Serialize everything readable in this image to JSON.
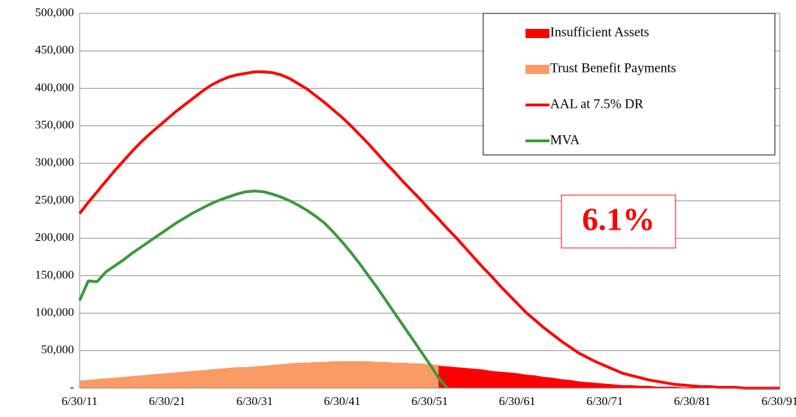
{
  "chart_data": {
    "type": "line",
    "annotation": "6.1%",
    "legend": "upper right",
    "grid": true,
    "ylim": [
      0,
      500000
    ],
    "yticks": [
      {
        "value": 0,
        "label": "-"
      },
      {
        "value": 50000,
        "label": "50,000"
      },
      {
        "value": 100000,
        "label": "100,000"
      },
      {
        "value": 150000,
        "label": "150,000"
      },
      {
        "value": 200000,
        "label": "200,000"
      },
      {
        "value": 250000,
        "label": "250,000"
      },
      {
        "value": 300000,
        "label": "300,000"
      },
      {
        "value": 350000,
        "label": "350,000"
      },
      {
        "value": 400000,
        "label": "400,000"
      },
      {
        "value": 450000,
        "label": "450,000"
      },
      {
        "value": 500000,
        "label": "500,000"
      }
    ],
    "categories": [
      "6/30/11",
      null,
      null,
      null,
      null,
      null,
      null,
      null,
      null,
      null,
      "6/30/21",
      null,
      null,
      null,
      null,
      null,
      null,
      null,
      null,
      null,
      "6/30/31",
      null,
      null,
      null,
      null,
      null,
      null,
      null,
      null,
      null,
      "6/30/41",
      null,
      null,
      null,
      null,
      null,
      null,
      null,
      null,
      null,
      "6/30/51",
      null,
      null,
      null,
      null,
      null,
      null,
      null,
      null,
      null,
      "6/30/61",
      null,
      null,
      null,
      null,
      null,
      null,
      null,
      null,
      null,
      "6/30/71",
      null,
      null,
      null,
      null,
      null,
      null,
      null,
      null,
      null,
      "6/30/81",
      null,
      null,
      null,
      null,
      null,
      null,
      null,
      null,
      null,
      "6/30/91"
    ],
    "series": [
      {
        "name": "Insufficient Assets",
        "type": "area",
        "color": "#ff0000",
        "values": [
          null,
          null,
          null,
          null,
          null,
          null,
          null,
          null,
          null,
          null,
          null,
          null,
          null,
          null,
          null,
          null,
          null,
          null,
          null,
          null,
          null,
          null,
          null,
          null,
          null,
          null,
          null,
          null,
          null,
          null,
          null,
          null,
          null,
          null,
          null,
          null,
          null,
          null,
          null,
          null,
          null,
          30000,
          29000,
          28000,
          27000,
          26000,
          25000,
          23000,
          22000,
          21000,
          20000,
          18000,
          17000,
          15000,
          14000,
          12000,
          11000,
          9000,
          8000,
          7000,
          6000,
          5000,
          4000,
          4000,
          3000,
          3000,
          2000,
          2000,
          2000,
          1000,
          1000,
          1000,
          1000,
          1000,
          0,
          0,
          0,
          0,
          0,
          0,
          0
        ]
      },
      {
        "name": "Trust Benefit Payments",
        "type": "area",
        "color": "#fa9a64",
        "values": [
          10000,
          11000,
          12000,
          13000,
          14000,
          15000,
          16000,
          17000,
          18000,
          19000,
          20000,
          21000,
          22000,
          23000,
          24000,
          25000,
          26000,
          27000,
          28000,
          28000,
          29000,
          30000,
          31000,
          32000,
          33000,
          34000,
          34000,
          35000,
          35000,
          36000,
          36000,
          36000,
          36000,
          36000,
          35000,
          35000,
          34000,
          34000,
          33000,
          33000,
          32000,
          31000,
          null,
          null,
          null,
          null,
          null,
          null,
          null,
          null,
          null,
          null,
          null,
          null,
          null,
          null,
          null,
          null,
          null,
          null,
          null,
          null,
          null,
          null,
          null,
          null,
          null,
          null,
          null,
          null,
          null,
          null,
          null,
          null,
          null,
          null,
          null,
          null,
          null,
          null,
          null
        ]
      },
      {
        "name": "AAL at 7.5% DR",
        "type": "line",
        "color": "#ff0000",
        "values": [
          233000,
          248000,
          262000,
          276000,
          290000,
          303000,
          316000,
          328000,
          339000,
          349000,
          359000,
          369000,
          378000,
          387000,
          396000,
          404000,
          410000,
          415000,
          418000,
          420000,
          422000,
          422000,
          421000,
          418000,
          413000,
          406000,
          399000,
          390000,
          381000,
          371000,
          361000,
          350000,
          338000,
          326000,
          313000,
          300000,
          288000,
          275000,
          263000,
          251000,
          238000,
          226000,
          213000,
          201000,
          188000,
          175000,
          162000,
          150000,
          137000,
          125000,
          113000,
          101000,
          91000,
          81000,
          72000,
          63000,
          55000,
          47000,
          41000,
          35000,
          30000,
          25000,
          20000,
          17000,
          14000,
          11000,
          9000,
          7000,
          5000,
          4000,
          3000,
          2000,
          2000,
          1000,
          1000,
          1000,
          0,
          0,
          0,
          0,
          0
        ]
      },
      {
        "name": "MVA",
        "type": "line",
        "color": "#3a993a",
        "values": [
          117000,
          143000,
          142000,
          155000,
          163000,
          171000,
          180000,
          188000,
          196000,
          204000,
          212000,
          220000,
          227000,
          234000,
          240000,
          246000,
          251000,
          255000,
          259000,
          262000,
          263000,
          262000,
          259000,
          255000,
          250000,
          244000,
          237000,
          229000,
          220000,
          208000,
          195000,
          181000,
          166000,
          150000,
          134000,
          117000,
          100000,
          83000,
          66000,
          49000,
          32000,
          14000,
          0,
          null,
          null,
          null,
          null,
          null,
          null,
          null,
          null,
          null,
          null,
          null,
          null,
          null,
          null,
          null,
          null,
          null,
          null,
          null,
          null,
          null,
          null,
          null,
          null,
          null,
          null,
          null,
          null,
          null,
          null,
          null,
          null,
          null,
          null,
          null,
          null,
          null,
          null
        ]
      }
    ]
  }
}
